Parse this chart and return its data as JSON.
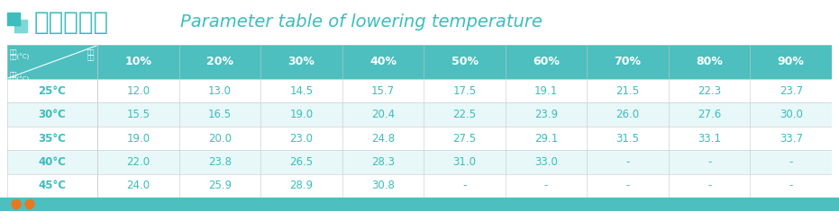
{
  "title_chinese": "降温参数表",
  "title_english": "Parameter table of lowering temperature",
  "header_bg": "#4DBFBF",
  "header_text_color": "#FFFFFF",
  "row_bg_odd": "#FFFFFF",
  "row_bg_even": "#E8F7F8",
  "row_text_color": "#3DBDBD",
  "corner_text_top_left": "出风",
  "corner_text_top_left2": "温度(°C)",
  "corner_text_top_right": "室外",
  "corner_text_top_right2": "湿度",
  "corner_text_bottom": "室外",
  "corner_text_bottom2": "温度(°C)",
  "col_headers": [
    "10%",
    "20%",
    "30%",
    "40%",
    "50%",
    "60%",
    "70%",
    "80%",
    "90%"
  ],
  "row_headers": [
    "25°C",
    "30°C",
    "35°C",
    "40°C",
    "45°C"
  ],
  "table_data": [
    [
      "12.0",
      "13.0",
      "14.5",
      "15.7",
      "17.5",
      "19.1",
      "21.5",
      "22.3",
      "23.7"
    ],
    [
      "15.5",
      "16.5",
      "19.0",
      "20.4",
      "22.5",
      "23.9",
      "26.0",
      "27.6",
      "30.0"
    ],
    [
      "19.0",
      "20.0",
      "23.0",
      "24.8",
      "27.5",
      "29.1",
      "31.5",
      "33.1",
      "33.7"
    ],
    [
      "22.0",
      "23.8",
      "26.5",
      "28.3",
      "31.0",
      "33.0",
      "-",
      "-",
      "-"
    ],
    [
      "24.0",
      "25.9",
      "28.9",
      "30.8",
      "-",
      "-",
      "-",
      "-",
      "-"
    ]
  ],
  "bg_color": "#FFFFFF",
  "title_color_chinese": "#3DBDBD",
  "title_color_english": "#3DBDBD",
  "bottom_bar_color": "#4DBFBF",
  "bottom_icon_color": "#E87722",
  "fig_w": 9.31,
  "fig_h": 2.35,
  "dpi": 100
}
